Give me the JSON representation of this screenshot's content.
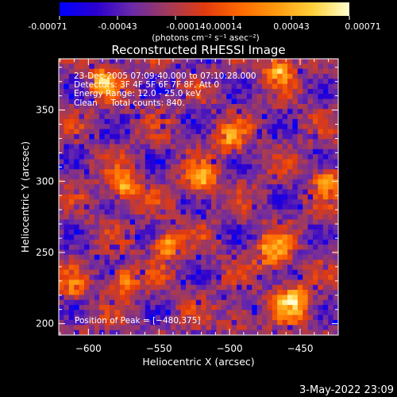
{
  "colorbar": {
    "ticks": [
      "-0.00071",
      "-0.00043",
      "-0.00014",
      "0.00014",
      "0.00043",
      "0.00071"
    ],
    "units": "(photons cm⁻² s⁻¹ asec⁻²)",
    "colors": [
      "#0000ff",
      "#2a00d0",
      "#6a2aa8",
      "#a23a5a",
      "#e23a10",
      "#ff6a00",
      "#ff9a10",
      "#ffd23a",
      "#ffffd0"
    ]
  },
  "chart_data": {
    "type": "heatmap",
    "title": "Reconstructed RHESSI Image",
    "xlabel": "Heliocentric X (arcsec)",
    "ylabel": "Heliocentric Y (arcsec)",
    "xlim": [
      -621,
      -423
    ],
    "ylim": [
      192,
      386
    ],
    "x_ticks": [
      -600,
      -550,
      -500,
      -450
    ],
    "y_ticks": [
      200,
      250,
      300,
      350
    ],
    "x_tick_labels": [
      "−600",
      "−550",
      "−500",
      "−450"
    ],
    "y_tick_labels": [
      "200",
      "250",
      "300",
      "350"
    ],
    "value_range": [
      -0.00071,
      0.00071
    ],
    "grid": false,
    "peak": [
      -480,
      375
    ],
    "annotations": [
      "23-Dec-2005 07:09:40.000 to 07:10:28.000",
      "Detectors: 3F 4F 5F 6F 7F 8F, Att 0",
      "Energy Range: 12.0 - 25.0 keV",
      "Clean     Total counts: 840.",
      "Position of Peak = [−480,375]"
    ]
  },
  "footer": {
    "timestamp": "3-May-2022 23:09"
  }
}
